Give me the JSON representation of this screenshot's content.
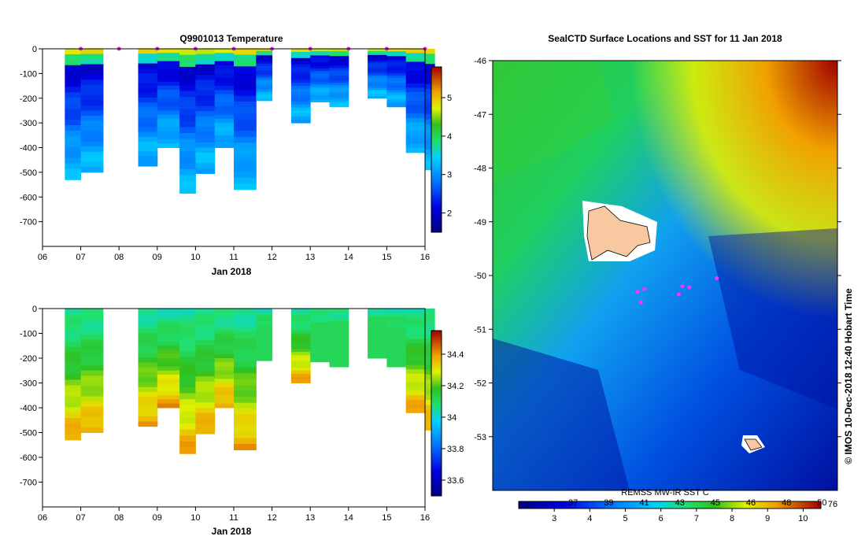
{
  "panels": {
    "temperature": {
      "title": "Q9901013  Temperature",
      "xlabel": "Jan 2018",
      "x_ticks": [
        "06",
        "07",
        "08",
        "09",
        "10",
        "11",
        "12",
        "13",
        "14",
        "15",
        "16"
      ],
      "y_ticks": [
        "0",
        "-100",
        "-200",
        "-300",
        "-400",
        "-500",
        "-600",
        "-700"
      ],
      "colorbar_ticks": [
        "2",
        "3",
        "4",
        "5"
      ]
    },
    "salinity": {
      "title": "",
      "xlabel": "Jan 2018",
      "x_ticks": [
        "06",
        "07",
        "08",
        "09",
        "10",
        "11",
        "12",
        "13",
        "14",
        "15",
        "16"
      ],
      "y_ticks": [
        "0",
        "-100",
        "-200",
        "-300",
        "-400",
        "-500",
        "-600",
        "-700"
      ],
      "colorbar_ticks": [
        "33.6",
        "33.8",
        "34",
        "34.2",
        "34.4"
      ]
    },
    "map": {
      "title": "SealCTD Surface Locations and SST for 11 Jan 2018",
      "y_ticks": [
        "-46",
        "-47",
        "-48",
        "-49",
        "-50",
        "-51",
        "-52",
        "-53"
      ],
      "colorbar_label": "REMSS MW-IR SST  C",
      "colorbar_f_ticks": [
        "37",
        "39",
        "41",
        "43",
        "45",
        "46",
        "48",
        "50"
      ],
      "colorbar_c_ticks": [
        "3",
        "4",
        "5",
        "6",
        "7",
        "8",
        "9",
        "10"
      ],
      "colorbar_end_label": "76",
      "credit": "© IMOS 10-Dec-2018 12:40 Hobart Time"
    }
  },
  "chart_data": [
    {
      "type": "heatmap",
      "title": "Q9901013  Temperature",
      "xlabel": "Jan 2018",
      "xlim": [
        "2018-01-06",
        "2018-01-16"
      ],
      "ylim": [
        -800,
        0
      ],
      "colorbar_range": [
        1.5,
        5.8
      ],
      "profile_times": [
        "2018-01-06T14:00",
        "2018-01-07T00:00",
        "2018-01-08T12:00",
        "2018-01-09T00:00",
        "2018-01-09T14:00",
        "2018-01-10T00:00",
        "2018-01-10T12:00",
        "2018-01-11T00:00",
        "2018-01-11T14:00",
        "2018-01-12T12:00",
        "2018-01-13T00:00",
        "2018-01-13T12:00",
        "2018-01-14T12:00",
        "2018-01-15T00:00",
        "2018-01-15T12:00",
        "2018-01-16T00:00"
      ],
      "profile_end_times": [
        "2018-01-07T00:00",
        "2018-01-07T14:00",
        "2018-01-09T00:00",
        "2018-01-09T14:00",
        "2018-01-10T00:00",
        "2018-01-10T12:00",
        "2018-01-11T00:00",
        "2018-01-11T14:00",
        "2018-01-12T00:00",
        "2018-01-13T00:00",
        "2018-01-13T12:00",
        "2018-01-14T00:00",
        "2018-01-15T00:00",
        "2018-01-15T12:00",
        "2018-01-16T00:00",
        "2018-01-16T06:00"
      ],
      "profile_depths": [
        -530,
        -500,
        -475,
        -400,
        -585,
        -505,
        -400,
        -570,
        -210,
        -300,
        -215,
        -235,
        -200,
        -235,
        -420,
        -490
      ],
      "surface_markers": [
        "2018-01-07T00:00",
        "2018-01-08T00:00",
        "2018-01-09T00:00",
        "2018-01-10T00:00",
        "2018-01-11T00:00",
        "2018-01-12T00:00",
        "2018-01-13T00:00",
        "2018-01-14T00:00",
        "2018-01-15T00:00",
        "2018-01-16T00:00"
      ]
    },
    {
      "type": "heatmap",
      "title": "",
      "xlabel": "Jan 2018",
      "xlim": [
        "2018-01-06",
        "2018-01-16"
      ],
      "ylim": [
        -800,
        0
      ],
      "colorbar_range": [
        33.5,
        34.55
      ],
      "profile_times": [
        "2018-01-06T14:00",
        "2018-01-07T00:00",
        "2018-01-08T12:00",
        "2018-01-09T00:00",
        "2018-01-09T14:00",
        "2018-01-10T00:00",
        "2018-01-10T12:00",
        "2018-01-11T00:00",
        "2018-01-11T14:00",
        "2018-01-12T12:00",
        "2018-01-13T00:00",
        "2018-01-13T12:00",
        "2018-01-14T12:00",
        "2018-01-15T00:00",
        "2018-01-15T12:00",
        "2018-01-16T00:00"
      ],
      "profile_end_times": [
        "2018-01-07T00:00",
        "2018-01-07T14:00",
        "2018-01-09T00:00",
        "2018-01-09T14:00",
        "2018-01-10T00:00",
        "2018-01-10T12:00",
        "2018-01-11T00:00",
        "2018-01-11T14:00",
        "2018-01-12T00:00",
        "2018-01-13T00:00",
        "2018-01-13T12:00",
        "2018-01-14T00:00",
        "2018-01-15T00:00",
        "2018-01-15T12:00",
        "2018-01-16T00:00",
        "2018-01-16T06:00"
      ],
      "profile_depths": [
        -530,
        -500,
        -475,
        -400,
        -585,
        -505,
        -400,
        -570,
        -210,
        -300,
        -215,
        -235,
        -200,
        -235,
        -420,
        -490
      ]
    },
    {
      "type": "heatmap",
      "title": "SealCTD Surface Locations and SST for 11 Jan 2018",
      "ylim": [
        -54,
        -46
      ],
      "colorbar_range": [
        2,
        10.5
      ],
      "surface_locations": [
        {
          "lon": 0.42,
          "lat": -50.3
        },
        {
          "lon": 0.43,
          "lat": -50.5
        },
        {
          "lon": 0.44,
          "lat": -50.25
        },
        {
          "lon": 0.55,
          "lat": -50.2
        },
        {
          "lon": 0.54,
          "lat": -50.35
        },
        {
          "lon": 0.57,
          "lat": -50.22
        },
        {
          "lon": 0.65,
          "lat": -50.05
        }
      ]
    }
  ]
}
